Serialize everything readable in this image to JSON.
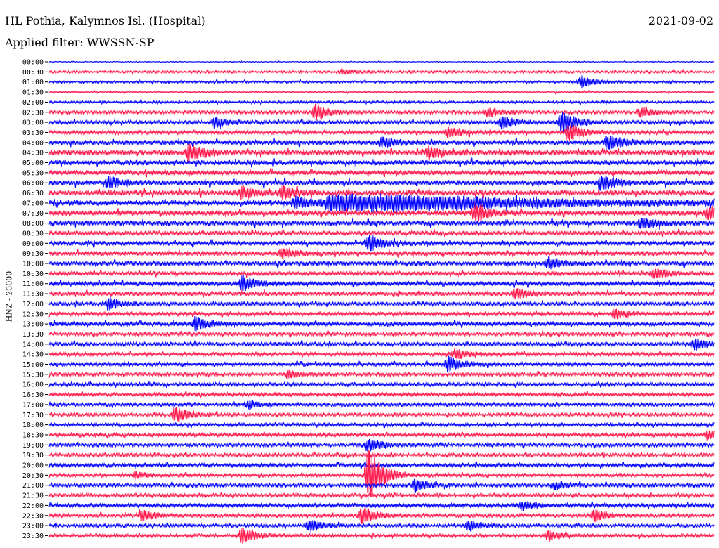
{
  "header": {
    "station": "HL Pothia, Kalymnos Isl. (Hospital)",
    "date": "2021-09-02",
    "filter": "Applied filter: WWSSN-SP"
  },
  "chart_data": {
    "type": "line",
    "ylabel": "HNZ - 25000",
    "row_colors": [
      "#0000ff",
      "#ff1a4d"
    ],
    "rows": [
      "00:00",
      "00:30",
      "01:00",
      "01:30",
      "02:00",
      "02:30",
      "03:00",
      "03:30",
      "04:00",
      "04:30",
      "05:00",
      "05:30",
      "06:00",
      "06:30",
      "07:00",
      "07:30",
      "08:00",
      "08:30",
      "09:00",
      "09:30",
      "10:00",
      "10:30",
      "11:00",
      "11:30",
      "12:00",
      "12:30",
      "13:00",
      "13:30",
      "14:00",
      "14:30",
      "15:00",
      "15:30",
      "16:00",
      "16:30",
      "17:00",
      "17:30",
      "18:00",
      "18:30",
      "19:00",
      "19:30",
      "20:00",
      "20:30",
      "21:00",
      "21:30",
      "22:00",
      "22:30",
      "23:00",
      "23:30"
    ],
    "noise_level": [
      0.6,
      1.6,
      1.4,
      1.2,
      1.6,
      2.2,
      2.4,
      2.6,
      3.2,
      3.6,
      3.4,
      3.2,
      3.4,
      3.6,
      3.6,
      3.4,
      3.4,
      3.0,
      3.0,
      3.0,
      3.0,
      2.8,
      2.8,
      2.8,
      2.6,
      2.6,
      2.6,
      2.4,
      2.6,
      2.4,
      2.4,
      2.4,
      2.4,
      2.2,
      2.4,
      2.2,
      2.2,
      2.2,
      2.4,
      2.4,
      2.4,
      2.2,
      2.6,
      2.4,
      2.4,
      2.4,
      2.2,
      2.2
    ],
    "events": [
      {
        "row": "00:30",
        "t": 0.44,
        "amp": 4
      },
      {
        "row": "01:00",
        "t": 0.8,
        "amp": 9
      },
      {
        "row": "02:30",
        "t": 0.4,
        "amp": 11
      },
      {
        "row": "02:30",
        "t": 0.89,
        "amp": 8
      },
      {
        "row": "02:30",
        "t": 0.66,
        "amp": 6
      },
      {
        "row": "03:00",
        "t": 0.77,
        "amp": 16
      },
      {
        "row": "03:00",
        "t": 0.68,
        "amp": 10
      },
      {
        "row": "03:00",
        "t": 0.25,
        "amp": 8
      },
      {
        "row": "03:30",
        "t": 0.78,
        "amp": 14
      },
      {
        "row": "03:30",
        "t": 0.6,
        "amp": 8
      },
      {
        "row": "04:00",
        "t": 0.84,
        "amp": 12
      },
      {
        "row": "04:00",
        "t": 0.5,
        "amp": 8
      },
      {
        "row": "04:30",
        "t": 0.21,
        "amp": 14
      },
      {
        "row": "04:30",
        "t": 0.57,
        "amp": 8
      },
      {
        "row": "06:00",
        "t": 0.09,
        "amp": 8
      },
      {
        "row": "06:00",
        "t": 0.83,
        "amp": 11
      },
      {
        "row": "06:30",
        "t": 0.29,
        "amp": 9
      },
      {
        "row": "06:30",
        "t": 0.35,
        "amp": 9
      },
      {
        "row": "07:00",
        "t": 0.48,
        "amp": 14,
        "width": 0.13
      },
      {
        "row": "07:00",
        "t": 0.37,
        "amp": 9
      },
      {
        "row": "07:30",
        "t": 0.64,
        "amp": 14
      },
      {
        "row": "07:30",
        "t": 0.99,
        "amp": 10
      },
      {
        "row": "08:00",
        "t": 0.89,
        "amp": 9
      },
      {
        "row": "09:00",
        "t": 0.48,
        "amp": 12
      },
      {
        "row": "09:30",
        "t": 0.35,
        "amp": 7
      },
      {
        "row": "10:00",
        "t": 0.75,
        "amp": 8
      },
      {
        "row": "10:30",
        "t": 0.91,
        "amp": 8
      },
      {
        "row": "11:00",
        "t": 0.29,
        "amp": 11
      },
      {
        "row": "11:30",
        "t": 0.7,
        "amp": 8
      },
      {
        "row": "12:00",
        "t": 0.09,
        "amp": 9
      },
      {
        "row": "12:30",
        "t": 0.85,
        "amp": 7
      },
      {
        "row": "13:00",
        "t": 0.22,
        "amp": 10
      },
      {
        "row": "14:00",
        "t": 0.97,
        "amp": 8
      },
      {
        "row": "14:30",
        "t": 0.61,
        "amp": 8
      },
      {
        "row": "15:00",
        "t": 0.6,
        "amp": 11
      },
      {
        "row": "15:30",
        "t": 0.36,
        "amp": 6
      },
      {
        "row": "17:00",
        "t": 0.3,
        "amp": 6
      },
      {
        "row": "17:30",
        "t": 0.19,
        "amp": 12
      },
      {
        "row": "18:30",
        "t": 0.99,
        "amp": 8
      },
      {
        "row": "19:00",
        "t": 0.48,
        "amp": 10
      },
      {
        "row": "20:30",
        "t": 0.48,
        "amp": 40
      },
      {
        "row": "20:30",
        "t": 0.13,
        "amp": 5
      },
      {
        "row": "21:00",
        "t": 0.55,
        "amp": 9
      },
      {
        "row": "21:00",
        "t": 0.76,
        "amp": 6
      },
      {
        "row": "22:00",
        "t": 0.71,
        "amp": 7
      },
      {
        "row": "22:30",
        "t": 0.47,
        "amp": 14
      },
      {
        "row": "22:30",
        "t": 0.14,
        "amp": 8
      },
      {
        "row": "22:30",
        "t": 0.82,
        "amp": 9
      },
      {
        "row": "23:00",
        "t": 0.39,
        "amp": 9
      },
      {
        "row": "23:00",
        "t": 0.63,
        "amp": 8
      },
      {
        "row": "23:30",
        "t": 0.29,
        "amp": 12
      },
      {
        "row": "23:30",
        "t": 0.75,
        "amp": 7
      }
    ]
  }
}
